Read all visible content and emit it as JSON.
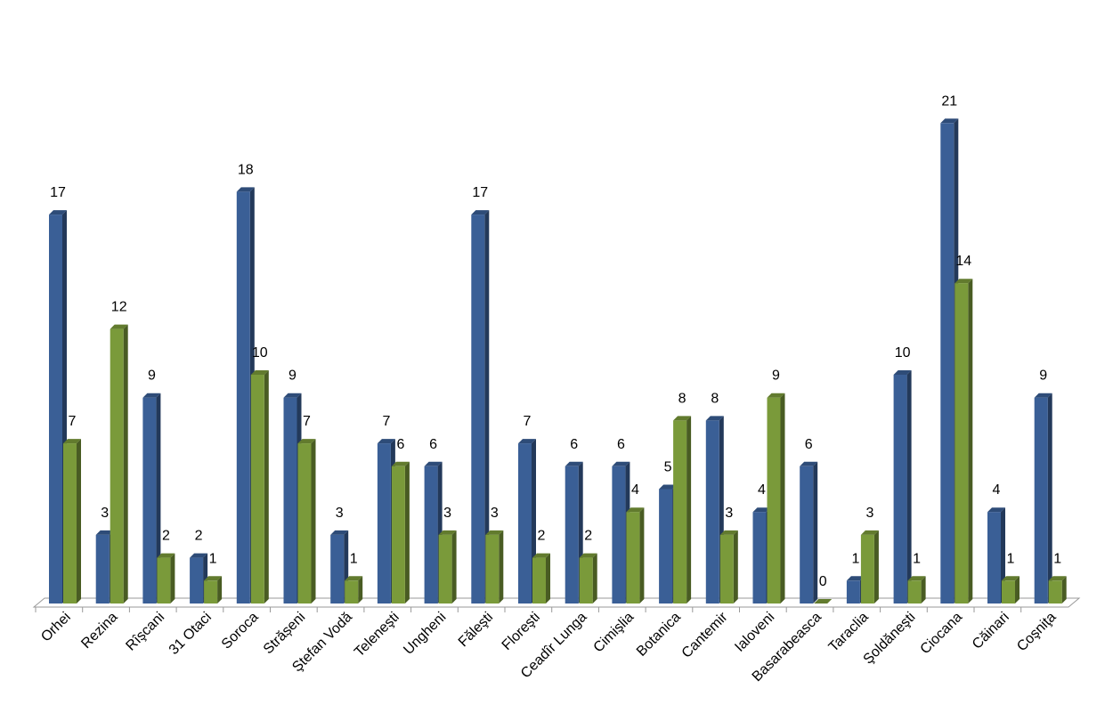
{
  "chart_data": {
    "type": "bar3d",
    "categories": [
      "Orhei",
      "Rezina",
      "Rîşcani",
      "31 Otaci",
      "Soroca",
      "Strășeni",
      "Ştefan Vodă",
      "Teleneşti",
      "Ungheni",
      "Făleşti",
      "Floreşti",
      "Ceadîr Lunga",
      "Cimişlia",
      "Botanica",
      "Cantemir",
      "Ialoveni",
      "Basarabeasca",
      "Taraclia",
      "Şoldăneşti",
      "Ciocana",
      "Căinari",
      "Coşniţa"
    ],
    "series": [
      {
        "color": "#3a5f96",
        "values": [
          17,
          3,
          9,
          2,
          18,
          9,
          3,
          7,
          6,
          17,
          7,
          6,
          6,
          5,
          8,
          4,
          6,
          1,
          10,
          21,
          4,
          9
        ]
      },
      {
        "color": "#7a9a3a",
        "values": [
          7,
          12,
          2,
          1,
          10,
          7,
          1,
          6,
          3,
          3,
          2,
          2,
          4,
          8,
          3,
          9,
          0,
          3,
          1,
          14,
          1,
          1
        ]
      }
    ]
  }
}
